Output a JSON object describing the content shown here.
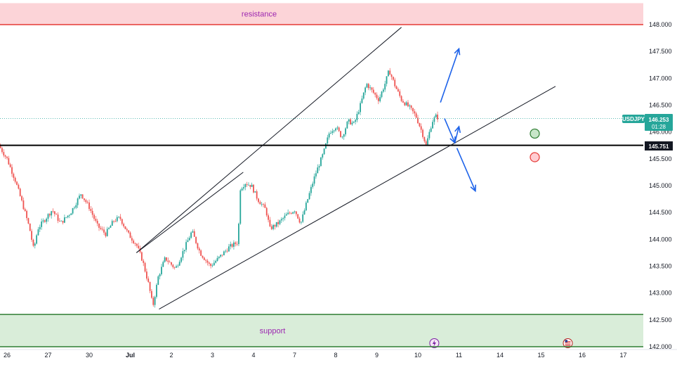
{
  "chart_data": {
    "type": "candlestick",
    "symbol": "USDJPY",
    "ylim": [
      142.0,
      148.4
    ],
    "y_ticks": [
      "148.000",
      "147.500",
      "147.000",
      "146.500",
      "146.000",
      "145.500",
      "145.000",
      "144.500",
      "144.000",
      "143.500",
      "143.000",
      "142.500",
      "142.000"
    ],
    "x_ticks": [
      {
        "label": "26",
        "pos": 0
      },
      {
        "label": "27",
        "pos": 1
      },
      {
        "label": "30",
        "pos": 2
      },
      {
        "label": "Jul",
        "pos": 3
      },
      {
        "label": "2",
        "pos": 4
      },
      {
        "label": "3",
        "pos": 5
      },
      {
        "label": "4",
        "pos": 6
      },
      {
        "label": "7",
        "pos": 7
      },
      {
        "label": "8",
        "pos": 8
      },
      {
        "label": "9",
        "pos": 9
      },
      {
        "label": "10",
        "pos": 10
      },
      {
        "label": "11",
        "pos": 11
      },
      {
        "label": "14",
        "pos": 12
      },
      {
        "label": "15",
        "pos": 13
      },
      {
        "label": "16",
        "pos": 14
      },
      {
        "label": "17",
        "pos": 15
      }
    ],
    "price_path": [
      [
        -0.2,
        145.75
      ],
      [
        0.0,
        145.5
      ],
      [
        0.2,
        145.1
      ],
      [
        0.4,
        144.6
      ],
      [
        0.55,
        144.2
      ],
      [
        0.65,
        143.8
      ],
      [
        0.75,
        144.2
      ],
      [
        0.9,
        144.35
      ],
      [
        1.1,
        144.55
      ],
      [
        1.3,
        144.3
      ],
      [
        1.55,
        144.5
      ],
      [
        1.8,
        144.85
      ],
      [
        2.0,
        144.6
      ],
      [
        2.2,
        144.25
      ],
      [
        2.4,
        144.1
      ],
      [
        2.6,
        144.35
      ],
      [
        2.75,
        144.4
      ],
      [
        2.95,
        144.1
      ],
      [
        3.15,
        143.9
      ],
      [
        3.3,
        143.6
      ],
      [
        3.45,
        143.15
      ],
      [
        3.55,
        142.75
      ],
      [
        3.68,
        143.3
      ],
      [
        3.85,
        143.65
      ],
      [
        4.1,
        143.45
      ],
      [
        4.3,
        143.8
      ],
      [
        4.5,
        144.15
      ],
      [
        4.7,
        143.75
      ],
      [
        4.95,
        143.5
      ],
      [
        5.15,
        143.65
      ],
      [
        5.4,
        143.85
      ],
      [
        5.62,
        143.95
      ],
      [
        5.68,
        144.95
      ],
      [
        5.8,
        145.05
      ],
      [
        5.95,
        145.0
      ],
      [
        6.1,
        144.75
      ],
      [
        6.3,
        144.55
      ],
      [
        6.4,
        144.2
      ],
      [
        6.6,
        144.3
      ],
      [
        6.8,
        144.45
      ],
      [
        7.0,
        144.55
      ],
      [
        7.15,
        144.3
      ],
      [
        7.3,
        144.7
      ],
      [
        7.5,
        145.2
      ],
      [
        7.7,
        145.6
      ],
      [
        7.85,
        146.0
      ],
      [
        8.0,
        146.1
      ],
      [
        8.15,
        145.9
      ],
      [
        8.3,
        146.2
      ],
      [
        8.45,
        146.15
      ],
      [
        8.6,
        146.5
      ],
      [
        8.75,
        146.9
      ],
      [
        8.9,
        146.75
      ],
      [
        9.05,
        146.6
      ],
      [
        9.2,
        146.9
      ],
      [
        9.3,
        147.15
      ],
      [
        9.45,
        146.85
      ],
      [
        9.6,
        146.6
      ],
      [
        9.8,
        146.45
      ],
      [
        9.95,
        146.3
      ],
      [
        10.1,
        146.0
      ],
      [
        10.2,
        145.75
      ],
      [
        10.35,
        146.2
      ],
      [
        10.45,
        146.3
      ],
      [
        10.5,
        146.25
      ]
    ],
    "last_price": "146.253",
    "countdown": "01:28",
    "horizontal_line": "145.751",
    "resistance": {
      "label": "resistance",
      "from": 148.0,
      "to": 148.4,
      "line": 148.0
    },
    "support": {
      "label": "support",
      "from": 142.0,
      "to": 142.6,
      "line": 142.6
    },
    "channel": {
      "upper": [
        [
          3.15,
          143.75
        ],
        [
          9.6,
          147.95
        ]
      ],
      "lower": [
        [
          3.7,
          142.7
        ],
        [
          13.35,
          146.85
        ]
      ],
      "upper_left": [
        [
          3.15,
          143.75
        ],
        [
          5.75,
          145.25
        ]
      ]
    },
    "arrows": [
      {
        "from": [
          10.55,
          146.55
        ],
        "to": [
          11.0,
          147.55
        ],
        "color": "#1e63e9"
      },
      {
        "from": [
          10.65,
          146.25
        ],
        "to": [
          10.9,
          145.8
        ],
        "color": "#1e63e9"
      },
      {
        "from": [
          10.9,
          145.8
        ],
        "to": [
          11.0,
          146.1
        ],
        "color": "#1e63e9"
      },
      {
        "from": [
          10.95,
          145.7
        ],
        "to": [
          11.4,
          144.9
        ],
        "color": "#1e63e9"
      }
    ],
    "markers": [
      {
        "x": 13.0,
        "y": 145.97,
        "fill": "#c8e6c9",
        "stroke": "#2e7d32"
      },
      {
        "x": 13.0,
        "y": 145.53,
        "fill": "#ffcdd2",
        "stroke": "#e53935"
      }
    ],
    "event_icons": [
      {
        "name": "lightning-event-icon",
        "x": 10.4,
        "glyph": "⚡"
      },
      {
        "name": "us-flag-event-icon",
        "x": 13.65,
        "glyph": "🇺🇸"
      }
    ],
    "colors": {
      "up": "#26a69a",
      "down": "#ef5350",
      "resistance_fill": "#fcd4d8",
      "resistance_line": "#e53935",
      "support_fill": "#d9edd9",
      "support_line": "#2e7d32",
      "badge": "#26a69a"
    }
  }
}
